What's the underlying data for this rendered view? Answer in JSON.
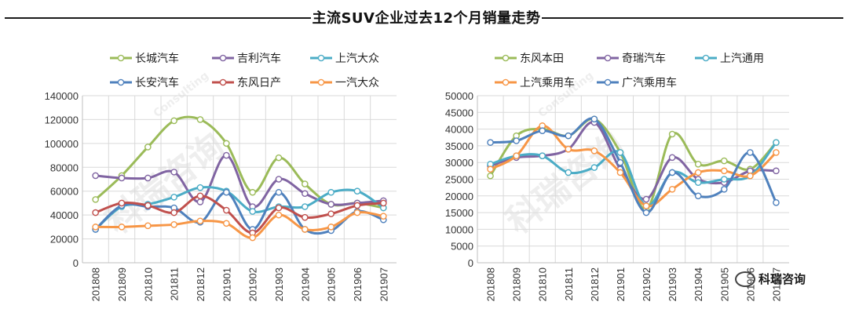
{
  "page": {
    "title": "主流SUV企业过去12个月销量走势",
    "watermark_left": "科瑞咨询",
    "watermark_right": "科瑞咨询",
    "watermark_wechat_label": "科瑞咨询",
    "watermark_sub": "Consulting"
  },
  "chart_data": [
    {
      "type": "line",
      "smooth": true,
      "categories": [
        "201808",
        "201809",
        "201810",
        "201811",
        "201812",
        "201901",
        "201902",
        "201903",
        "201904",
        "201905",
        "201906",
        "201907"
      ],
      "yticks": [
        "0",
        "20000",
        "40000",
        "60000",
        "80000",
        "100000",
        "120000",
        "140000"
      ],
      "ylim": [
        0,
        140000
      ],
      "grid": true,
      "legend_position": "top",
      "series": [
        {
          "name": "长城汽车",
          "color": "#9bbb59",
          "values": [
            53000,
            73000,
            97000,
            119000,
            120000,
            100000,
            59000,
            88000,
            66000,
            49000,
            50000,
            46000
          ]
        },
        {
          "name": "吉利汽车",
          "color": "#8064a2",
          "values": [
            73000,
            71000,
            71000,
            76000,
            51000,
            90000,
            47000,
            70000,
            58000,
            49000,
            50000,
            52000
          ]
        },
        {
          "name": "上汽大众",
          "color": "#4bacc6",
          "values": [
            28000,
            47000,
            49000,
            55000,
            63000,
            60000,
            43000,
            47000,
            47000,
            59000,
            60000,
            46000
          ]
        },
        {
          "name": "长安汽车",
          "color": "#4f81bd",
          "values": [
            28000,
            48000,
            47000,
            46000,
            34000,
            59000,
            28000,
            59000,
            28000,
            27000,
            43000,
            36000
          ]
        },
        {
          "name": "东风日产",
          "color": "#c0504d",
          "values": [
            42000,
            50000,
            48000,
            42000,
            56000,
            44000,
            25000,
            46000,
            38000,
            41000,
            48000,
            50000
          ]
        },
        {
          "name": "一汽大众",
          "color": "#f79646",
          "values": [
            30000,
            30000,
            31000,
            32000,
            35000,
            33000,
            21000,
            40000,
            28000,
            30000,
            42000,
            39000
          ]
        }
      ]
    },
    {
      "type": "line",
      "smooth": true,
      "categories": [
        "201808",
        "201809",
        "201810",
        "201811",
        "201812",
        "201901",
        "201902",
        "201903",
        "201904",
        "201905",
        "201906",
        "201907"
      ],
      "yticks": [
        "0",
        "5000",
        "10000",
        "15000",
        "20000",
        "25000",
        "30000",
        "35000",
        "40000",
        "45000",
        "50000"
      ],
      "ylim": [
        0,
        50000
      ],
      "grid": true,
      "legend_position": "top",
      "series": [
        {
          "name": "东风本田",
          "color": "#9bbb59",
          "values": [
            26000,
            38000,
            40000,
            38000,
            43000,
            33000,
            16000,
            38500,
            29500,
            30500,
            28000,
            36000
          ]
        },
        {
          "name": "奇瑞汽车",
          "color": "#8064a2",
          "values": [
            29000,
            31500,
            32000,
            34000,
            42000,
            28000,
            19000,
            31500,
            25000,
            24000,
            27500,
            27500
          ]
        },
        {
          "name": "上汽通用",
          "color": "#4bacc6",
          "values": [
            29500,
            32000,
            32000,
            27000,
            28500,
            33000,
            17000,
            27000,
            24000,
            25000,
            26000,
            36000
          ]
        },
        {
          "name": "上汽乘用车",
          "color": "#f79646",
          "values": [
            28000,
            32000,
            41000,
            34000,
            33500,
            27000,
            17000,
            22000,
            27000,
            27500,
            26000,
            33000
          ]
        },
        {
          "name": "广汽乘用车",
          "color": "#4f81bd",
          "values": [
            36000,
            36500,
            39500,
            38000,
            43000,
            30000,
            15000,
            27000,
            20000,
            22000,
            33000,
            18000
          ]
        }
      ]
    }
  ]
}
